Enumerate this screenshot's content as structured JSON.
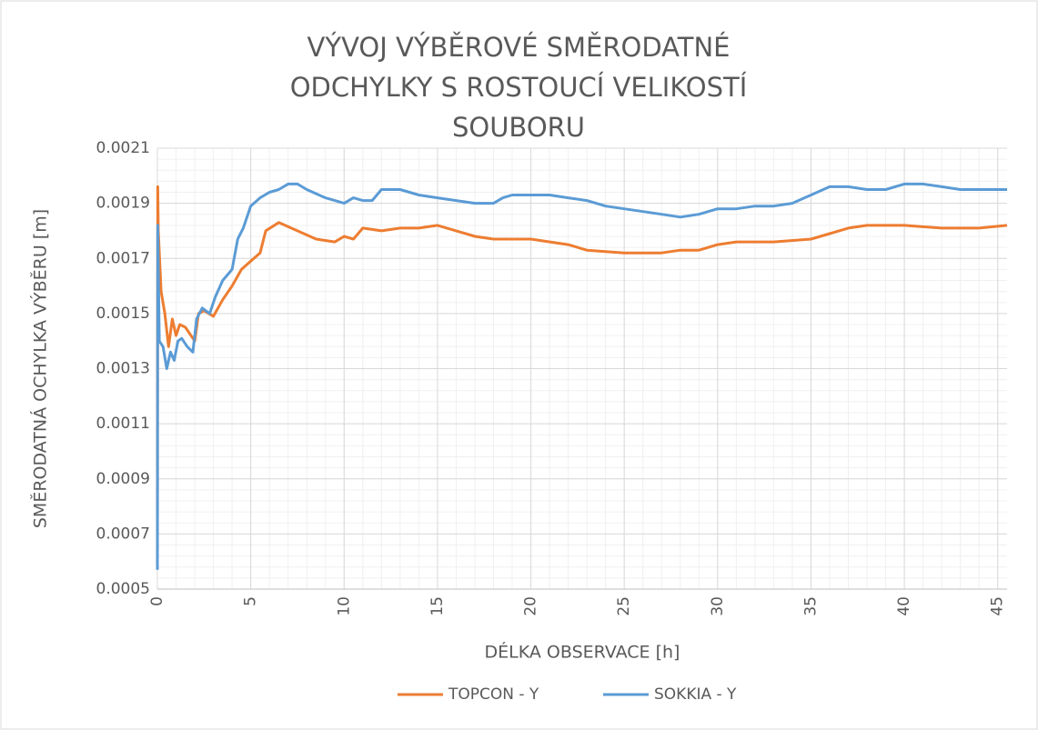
{
  "chart_data": {
    "type": "line",
    "title": "VÝVOJ VÝBĚROVÉ SMĚRODATNÉ ODCHYLKY S ROSTOUCÍ VELIKOSTÍ SOUBORU",
    "x_label": "DÉLKA OBSERVACE [h]",
    "y_label": "SMĚRODATNÁ OCHYLKA VÝBĚRU [m]",
    "xlim": [
      0,
      45.5
    ],
    "xticks": [
      0,
      5,
      10,
      15,
      20,
      25,
      30,
      35,
      40,
      45
    ],
    "ylim": [
      0.0005,
      0.0021
    ],
    "yticks": [
      0.0005,
      0.0007,
      0.0009,
      0.0011,
      0.0013,
      0.0015,
      0.0017,
      0.0019,
      0.0021
    ],
    "grid": true,
    "minor_grid": true,
    "legend": "bottom",
    "series": [
      {
        "name": "TOPCON - Y",
        "color": "#ed7d31",
        "x": [
          0,
          0.02,
          0.05,
          0.2,
          0.4,
          0.6,
          0.8,
          1.0,
          1.2,
          1.5,
          1.8,
          2.0,
          2.2,
          2.5,
          3.0,
          3.5,
          4.0,
          4.5,
          5.0,
          5.5,
          5.8,
          6.5,
          7.5,
          8.5,
          9.5,
          10,
          10.5,
          11,
          12,
          13,
          14,
          15,
          16,
          17,
          18,
          19,
          20,
          22,
          23,
          25,
          27,
          28,
          29,
          30,
          31,
          33,
          35,
          36,
          37,
          38,
          40,
          42,
          44,
          45.5
        ],
        "values": [
          0.00059,
          0.00196,
          0.0018,
          0.00158,
          0.0015,
          0.00138,
          0.00148,
          0.00142,
          0.00146,
          0.00145,
          0.00142,
          0.0014,
          0.0015,
          0.00151,
          0.00149,
          0.00155,
          0.0016,
          0.00166,
          0.00169,
          0.00172,
          0.0018,
          0.00183,
          0.0018,
          0.00177,
          0.00176,
          0.00178,
          0.00177,
          0.00181,
          0.0018,
          0.00181,
          0.00181,
          0.00182,
          0.0018,
          0.00178,
          0.00177,
          0.00177,
          0.00177,
          0.00175,
          0.00173,
          0.00172,
          0.00172,
          0.00173,
          0.00173,
          0.00175,
          0.00176,
          0.00176,
          0.00177,
          0.00179,
          0.00181,
          0.00182,
          0.00182,
          0.00181,
          0.00181,
          0.00182
        ]
      },
      {
        "name": "SOKKIA - Y",
        "color": "#5b9bd5",
        "x": [
          0,
          0.02,
          0.1,
          0.3,
          0.5,
          0.7,
          0.9,
          1.1,
          1.3,
          1.6,
          1.9,
          2.1,
          2.4,
          2.8,
          3.1,
          3.5,
          4.0,
          4.3,
          4.6,
          5.0,
          5.5,
          6.0,
          6.5,
          7,
          7.5,
          8,
          9,
          10,
          10.5,
          11,
          11.5,
          12,
          13,
          14,
          15,
          16,
          17,
          18,
          18.5,
          19,
          20,
          21,
          22,
          23,
          24,
          25,
          26,
          27,
          28,
          29,
          30,
          31,
          32,
          33,
          34,
          35,
          36,
          37,
          38,
          39,
          40,
          41,
          42,
          43,
          45.5
        ],
        "values": [
          0.00057,
          0.00182,
          0.0014,
          0.00138,
          0.0013,
          0.00136,
          0.00133,
          0.0014,
          0.00141,
          0.00138,
          0.00136,
          0.00148,
          0.00152,
          0.0015,
          0.00156,
          0.00162,
          0.00166,
          0.00177,
          0.00181,
          0.00189,
          0.00192,
          0.00194,
          0.00195,
          0.00197,
          0.00197,
          0.00195,
          0.00192,
          0.0019,
          0.00192,
          0.00191,
          0.00191,
          0.00195,
          0.00195,
          0.00193,
          0.00192,
          0.00191,
          0.0019,
          0.0019,
          0.00192,
          0.00193,
          0.00193,
          0.00193,
          0.00192,
          0.00191,
          0.00189,
          0.00188,
          0.00187,
          0.00186,
          0.00185,
          0.00186,
          0.00188,
          0.00188,
          0.00189,
          0.00189,
          0.0019,
          0.00193,
          0.00196,
          0.00196,
          0.00195,
          0.00195,
          0.00197,
          0.00197,
          0.00196,
          0.00195,
          0.00195
        ]
      }
    ]
  }
}
